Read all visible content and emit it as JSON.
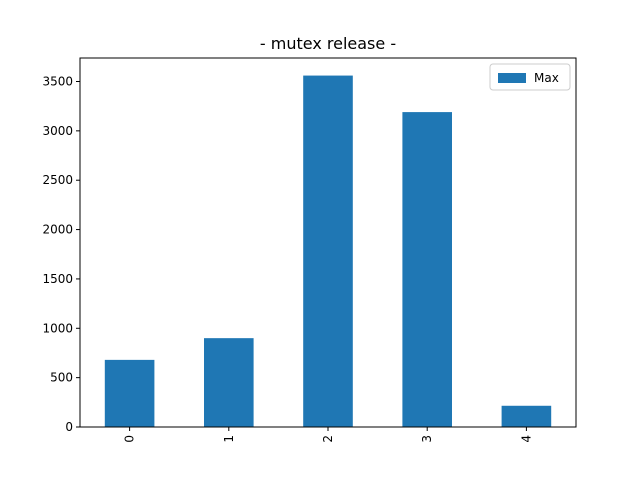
{
  "chart_data": {
    "type": "bar",
    "title": "- mutex release -",
    "xlabel": "",
    "ylabel": "",
    "categories": [
      "0",
      "1",
      "2",
      "3",
      "4"
    ],
    "series": [
      {
        "name": "Max",
        "values": [
          680,
          900,
          3560,
          3190,
          215
        ],
        "color": "#1f77b4"
      }
    ],
    "yticks": [
      0,
      500,
      1000,
      1500,
      2000,
      2500,
      3000,
      3500
    ],
    "ylim": [
      0,
      3738
    ],
    "grid": false,
    "legend": {
      "position": "top-right"
    }
  }
}
